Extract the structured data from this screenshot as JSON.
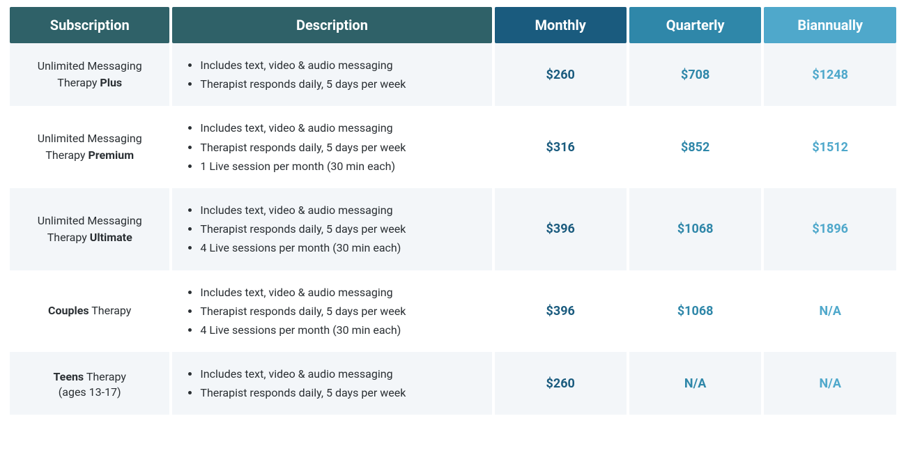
{
  "table": {
    "headers": {
      "subscription": "Subscription",
      "description": "Description",
      "monthly": "Monthly",
      "quarterly": "Quarterly",
      "biannually": "Biannually"
    },
    "header_colors": {
      "subscription": "#2f6168",
      "description": "#2f6168",
      "monthly": "#1a5b7e",
      "quarterly": "#2f87a9",
      "biannually": "#4fa8cb"
    },
    "price_colors": {
      "monthly": "#1a5b7e",
      "quarterly": "#2f87a9",
      "biannually": "#4fa8cb"
    },
    "row_bg_odd": "#f3f6f9",
    "row_bg_even": "#ffffff",
    "text_color": "#2a2f33",
    "rows": [
      {
        "name_pre": "Unlimited Messaging Therapy ",
        "name_bold": "Plus",
        "name_post": "",
        "note": "",
        "features": [
          "Includes text, video & audio messaging",
          "Therapist responds daily, 5 days per week"
        ],
        "monthly": "$260",
        "quarterly": "$708",
        "biannually": "$1248"
      },
      {
        "name_pre": "Unlimited Messaging Therapy ",
        "name_bold": "Premium",
        "name_post": "",
        "note": "",
        "features": [
          "Includes text, video & audio messaging",
          "Therapist responds daily, 5 days per week",
          "1 Live session per month (30 min each)"
        ],
        "monthly": "$316",
        "quarterly": "$852",
        "biannually": "$1512"
      },
      {
        "name_pre": "Unlimited Messaging Therapy ",
        "name_bold": "Ultimate",
        "name_post": "",
        "note": "",
        "features": [
          "Includes text, video & audio messaging",
          "Therapist responds daily, 5 days per week",
          "4 Live sessions per month (30 min each)"
        ],
        "monthly": "$396",
        "quarterly": "$1068",
        "biannually": "$1896"
      },
      {
        "name_pre": "",
        "name_bold": "Couples",
        "name_post": " Therapy",
        "note": "",
        "features": [
          "Includes text, video & audio messaging",
          "Therapist responds daily, 5 days per week",
          "4 Live sessions per month (30 min each)"
        ],
        "monthly": "$396",
        "quarterly": "$1068",
        "biannually": "N/A"
      },
      {
        "name_pre": "",
        "name_bold": "Teens",
        "name_post": " Therapy",
        "note": "(ages 13-17)",
        "features": [
          "Includes text, video & audio messaging",
          "Therapist responds daily, 5 days per week"
        ],
        "monthly": "$260",
        "quarterly": "N/A",
        "biannually": "N/A"
      }
    ]
  }
}
